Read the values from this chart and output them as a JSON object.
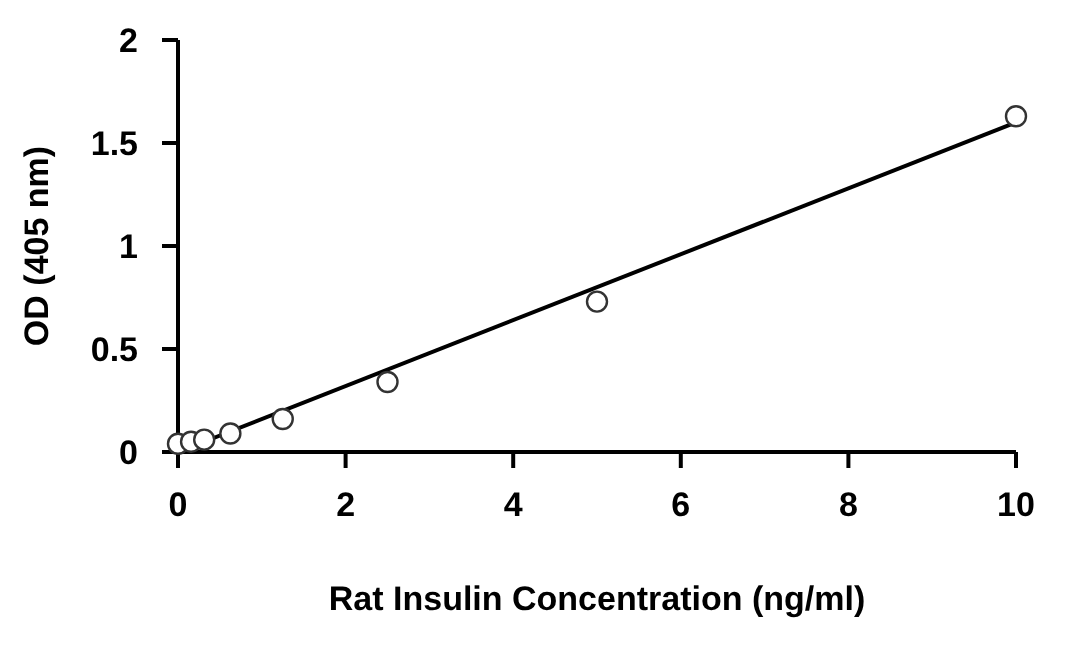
{
  "chart_data": {
    "type": "scatter",
    "xlabel": "Rat Insulin Concentration (ng/ml)",
    "ylabel": "OD (405 nm)",
    "xlim": [
      0,
      10
    ],
    "xticks": [
      0,
      2,
      4,
      6,
      8,
      10
    ],
    "ylim": [
      0,
      2
    ],
    "yticks": [
      0,
      0.5,
      1,
      1.5,
      2
    ],
    "grid": false,
    "marker": "circle",
    "series": [
      {
        "color": "#ffffff",
        "x": [
          0,
          0.156,
          0.3125,
          0.625,
          1.25,
          2.5,
          5,
          10
        ],
        "values": [
          0.04,
          0.05,
          0.06,
          0.09,
          0.16,
          0.34,
          0.73,
          1.63
        ]
      },
      {
        "type": "line",
        "color": "#000000",
        "x": [
          0,
          10
        ],
        "values": [
          0,
          1.6
        ],
        "marker": "none",
        "line_style": "solid"
      }
    ]
  }
}
